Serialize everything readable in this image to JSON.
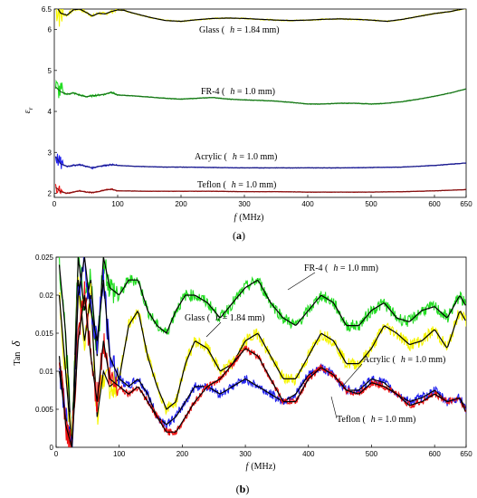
{
  "chart_data": [
    {
      "type": "line",
      "panel_label_prefix": "(",
      "panel_label_letter": "a",
      "panel_label_suffix": ")",
      "xlabel_italic": "f",
      "xlabel_rest": "(MHz)",
      "ylabel": "ε",
      "ylabel_sub": "r",
      "xlim": [
        0,
        650
      ],
      "ylim": [
        1.9,
        6.5
      ],
      "xticks": [
        "0",
        "100",
        "200",
        "300",
        "400",
        "500",
        "600",
        "650"
      ],
      "yticks": [
        "2",
        "3",
        "4",
        "5",
        "6",
        "6.5"
      ],
      "ytick_values": [
        2,
        3,
        4,
        5,
        6,
        6.5
      ],
      "xtick_values": [
        0,
        100,
        200,
        300,
        400,
        500,
        600,
        650
      ],
      "series": [
        {
          "raw_color": "#f5f500",
          "fit_color": "#000000",
          "annotation_prefix": "Glass (",
          "annotation_h": "h",
          "annotation_suffix": " = 1.84 mm)",
          "x": [
            2,
            10,
            20,
            30,
            40,
            50,
            60,
            70,
            80,
            90,
            100,
            110,
            120,
            130,
            150,
            175,
            200,
            225,
            250,
            275,
            300,
            325,
            350,
            375,
            400,
            425,
            450,
            475,
            500,
            525,
            550,
            575,
            600,
            625,
            650
          ],
          "y": [
            6.6,
            6.4,
            6.35,
            6.48,
            6.5,
            6.42,
            6.33,
            6.4,
            6.38,
            6.44,
            6.48,
            6.47,
            6.42,
            6.38,
            6.3,
            6.22,
            6.2,
            6.24,
            6.27,
            6.28,
            6.27,
            6.25,
            6.23,
            6.22,
            6.23,
            6.25,
            6.26,
            6.25,
            6.23,
            6.2,
            6.25,
            6.32,
            6.39,
            6.44,
            6.52
          ]
        },
        {
          "raw_color": "#22dd22",
          "fit_color": "#1a6a1a",
          "annotation_prefix": "FR-4 (",
          "annotation_h": "h",
          "annotation_suffix": " = 1.0 mm)",
          "x": [
            2,
            10,
            20,
            30,
            40,
            50,
            60,
            70,
            80,
            90,
            100,
            125,
            150,
            175,
            200,
            225,
            250,
            275,
            300,
            325,
            350,
            375,
            400,
            425,
            450,
            475,
            500,
            525,
            550,
            575,
            600,
            625,
            650
          ],
          "y": [
            4.6,
            4.48,
            4.42,
            4.45,
            4.4,
            4.36,
            4.38,
            4.4,
            4.42,
            4.47,
            4.4,
            4.38,
            4.35,
            4.32,
            4.3,
            4.32,
            4.34,
            4.3,
            4.28,
            4.27,
            4.25,
            4.22,
            4.18,
            4.18,
            4.2,
            4.2,
            4.18,
            4.2,
            4.24,
            4.3,
            4.37,
            4.45,
            4.55
          ]
        },
        {
          "raw_color": "#2222ee",
          "fit_color": "#1b1b80",
          "annotation_prefix": "Acrylic (",
          "annotation_h": "h",
          "annotation_suffix": " = 1.0 mm)",
          "x": [
            2,
            10,
            20,
            30,
            40,
            50,
            60,
            70,
            80,
            90,
            100,
            125,
            150,
            175,
            200,
            250,
            300,
            350,
            400,
            450,
            500,
            550,
            600,
            650
          ],
          "y": [
            2.9,
            2.72,
            2.66,
            2.68,
            2.7,
            2.66,
            2.62,
            2.66,
            2.68,
            2.7,
            2.68,
            2.66,
            2.65,
            2.64,
            2.64,
            2.63,
            2.62,
            2.62,
            2.62,
            2.62,
            2.63,
            2.64,
            2.68,
            2.74
          ]
        },
        {
          "raw_color": "#ee1111",
          "fit_color": "#7a1010",
          "annotation_prefix": "Teflon (",
          "annotation_h": "h",
          "annotation_suffix": " = 1.0 mm)",
          "x": [
            2,
            10,
            20,
            30,
            40,
            50,
            60,
            70,
            80,
            90,
            100,
            150,
            200,
            250,
            300,
            350,
            400,
            450,
            500,
            550,
            600,
            650
          ],
          "y": [
            2.15,
            2.04,
            2.0,
            2.03,
            2.06,
            2.03,
            2.02,
            2.04,
            2.08,
            2.1,
            2.06,
            2.05,
            2.05,
            2.05,
            2.04,
            2.04,
            2.03,
            2.03,
            2.03,
            2.04,
            2.06,
            2.09
          ]
        }
      ]
    },
    {
      "type": "line",
      "panel_label_prefix": "(",
      "panel_label_letter": "b",
      "panel_label_suffix": ")",
      "xlabel_italic": "f",
      "xlabel_rest": "(MHz)",
      "ylabel": "Tan",
      "ylabel_sym": "δ",
      "xlim": [
        0,
        650
      ],
      "ylim": [
        0,
        0.025
      ],
      "xticks": [
        "0",
        "100",
        "200",
        "300",
        "400",
        "500",
        "600",
        "650"
      ],
      "xtick_values": [
        0,
        100,
        200,
        300,
        400,
        500,
        600,
        650
      ],
      "yticks": [
        "0",
        "0.005",
        "0.01",
        "0.015",
        "0.02",
        "0.025"
      ],
      "ytick_values": [
        0,
        0.005,
        0.01,
        0.015,
        0.02,
        0.025
      ],
      "series": [
        {
          "raw_color": "#22dd22",
          "fit_color": "#000000",
          "annotation_prefix": "FR-4 (",
          "annotation_h": "h",
          "annotation_suffix": " = 1.0 mm)",
          "x": [
            5,
            15,
            25,
            35,
            45,
            55,
            65,
            75,
            85,
            100,
            115,
            130,
            145,
            160,
            175,
            190,
            205,
            220,
            240,
            260,
            280,
            300,
            320,
            340,
            360,
            380,
            400,
            420,
            440,
            460,
            480,
            500,
            520,
            540,
            560,
            580,
            600,
            620,
            640,
            650
          ],
          "y": [
            0.024,
            0.015,
            0.0,
            0.025,
            0.018,
            0.022,
            0.012,
            0.025,
            0.021,
            0.02,
            0.022,
            0.022,
            0.018,
            0.016,
            0.015,
            0.018,
            0.02,
            0.02,
            0.019,
            0.017,
            0.019,
            0.021,
            0.022,
            0.019,
            0.017,
            0.016,
            0.018,
            0.02,
            0.019,
            0.016,
            0.016,
            0.018,
            0.019,
            0.017,
            0.0165,
            0.018,
            0.0185,
            0.017,
            0.02,
            0.0185
          ]
        },
        {
          "raw_color": "#f5f500",
          "fit_color": "#000000",
          "annotation_prefix": "Glass (",
          "annotation_h": "h",
          "annotation_suffix": " = 1.84 mm)",
          "x": [
            5,
            15,
            25,
            35,
            45,
            55,
            65,
            75,
            85,
            100,
            115,
            130,
            145,
            160,
            175,
            190,
            205,
            220,
            240,
            260,
            280,
            300,
            320,
            340,
            360,
            380,
            400,
            420,
            440,
            460,
            480,
            500,
            520,
            540,
            560,
            580,
            600,
            620,
            640,
            650
          ],
          "y": [
            0.02,
            0.01,
            0.0,
            0.022,
            0.014,
            0.02,
            0.004,
            0.01,
            0.008,
            0.009,
            0.016,
            0.018,
            0.012,
            0.008,
            0.005,
            0.006,
            0.011,
            0.014,
            0.013,
            0.01,
            0.011,
            0.014,
            0.015,
            0.012,
            0.009,
            0.009,
            0.012,
            0.015,
            0.014,
            0.011,
            0.011,
            0.013,
            0.016,
            0.015,
            0.0135,
            0.014,
            0.0155,
            0.013,
            0.018,
            0.0165
          ]
        },
        {
          "raw_color": "#2222ee",
          "fit_color": "#000000",
          "annotation_prefix": "Acrylic (",
          "annotation_h": "h",
          "annotation_suffix": " = 1.0 mm)",
          "x": [
            5,
            15,
            25,
            35,
            45,
            55,
            65,
            75,
            85,
            100,
            115,
            130,
            145,
            160,
            175,
            190,
            205,
            220,
            240,
            260,
            280,
            300,
            320,
            340,
            360,
            380,
            400,
            420,
            440,
            460,
            480,
            500,
            520,
            540,
            560,
            580,
            600,
            620,
            640,
            650
          ],
          "y": [
            0.01,
            0.004,
            0.0,
            0.02,
            0.025,
            0.018,
            0.014,
            0.022,
            0.012,
            0.009,
            0.008,
            0.009,
            0.007,
            0.004,
            0.003,
            0.004,
            0.006,
            0.008,
            0.008,
            0.007,
            0.008,
            0.009,
            0.008,
            0.007,
            0.006,
            0.007,
            0.0095,
            0.0105,
            0.0095,
            0.0075,
            0.0075,
            0.009,
            0.0085,
            0.007,
            0.006,
            0.0065,
            0.0075,
            0.006,
            0.0065,
            0.005
          ]
        },
        {
          "raw_color": "#ee1111",
          "fit_color": "#000000",
          "annotation_prefix": "Teflon (",
          "annotation_h": "h",
          "annotation_suffix": " = 1.0 mm)",
          "x": [
            5,
            15,
            25,
            35,
            45,
            55,
            65,
            75,
            85,
            100,
            115,
            130,
            145,
            160,
            175,
            190,
            205,
            220,
            240,
            260,
            280,
            300,
            320,
            340,
            360,
            380,
            400,
            420,
            440,
            460,
            480,
            500,
            520,
            540,
            560,
            580,
            600,
            620,
            640,
            650
          ],
          "y": [
            0.012,
            0.003,
            0.0,
            0.014,
            0.02,
            0.012,
            0.006,
            0.014,
            0.009,
            0.008,
            0.007,
            0.008,
            0.006,
            0.004,
            0.002,
            0.002,
            0.004,
            0.006,
            0.008,
            0.009,
            0.011,
            0.013,
            0.012,
            0.009,
            0.006,
            0.006,
            0.009,
            0.0105,
            0.0095,
            0.0075,
            0.007,
            0.0085,
            0.008,
            0.007,
            0.0055,
            0.006,
            0.007,
            0.006,
            0.0065,
            0.0045
          ]
        }
      ]
    }
  ]
}
